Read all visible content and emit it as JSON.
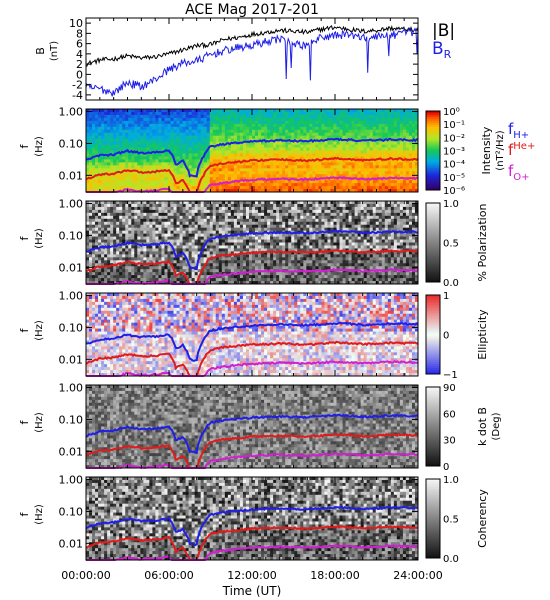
{
  "title": "ACE Mag 2017-201",
  "x_axis": {
    "label": "Time (UT)",
    "ticks": [
      "00:00:00",
      "06:00:00",
      "12:00:00",
      "18:00:00",
      "24:00:00"
    ],
    "range_hours": [
      0,
      24
    ]
  },
  "legend_top": [
    {
      "label": "|B|",
      "color": "#000000"
    },
    {
      "label": "B",
      "sub": "R",
      "color": "#1f1fe6"
    }
  ],
  "legend_cyclotron": [
    {
      "label": "f",
      "sub": "H+",
      "color": "#1f1fe6"
    },
    {
      "label": "f",
      "sup": "He+",
      "color": "#e01b1b"
    },
    {
      "label": "f",
      "sub": "O+",
      "color": "#d020d0"
    }
  ],
  "colors": {
    "btotal": "#000000",
    "br": "#1f1fe6",
    "f_h": "#1f1fe6",
    "f_he": "#e01b1b",
    "f_o": "#d020d0"
  },
  "chart_data": [
    {
      "type": "line",
      "name": "magnetic_field",
      "ylabel": "B",
      "yunit": "(nT)",
      "ylim": [
        -5,
        11
      ],
      "yticks": [
        "-4",
        "-2",
        "0",
        "2",
        "4",
        "6",
        "8",
        "10"
      ],
      "x_hours": [
        0,
        1,
        2,
        3,
        4,
        5,
        6,
        7,
        8,
        9,
        10,
        11,
        12,
        13,
        14,
        15,
        16,
        17,
        18,
        19,
        20,
        21,
        22,
        23,
        24
      ],
      "series": [
        {
          "name": "|B|",
          "values": [
            2.0,
            2.8,
            3.0,
            3.6,
            3.2,
            3.4,
            4.0,
            4.8,
            5.6,
            5.8,
            6.8,
            7.2,
            7.8,
            8.2,
            8.6,
            8.4,
            8.2,
            8.8,
            9.2,
            8.8,
            8.4,
            8.6,
            9.0,
            8.8,
            8.6
          ]
        },
        {
          "name": "B_R",
          "values": [
            -2.6,
            -2.8,
            -3.6,
            -1.6,
            -2.4,
            -1.0,
            1.0,
            2.2,
            2.6,
            3.8,
            4.6,
            5.2,
            5.6,
            6.4,
            7.0,
            5.8,
            5.6,
            7.2,
            7.6,
            7.8,
            7.0,
            7.4,
            7.6,
            8.0,
            8.4
          ]
        }
      ]
    },
    {
      "type": "heatmap",
      "name": "power_spectral_density",
      "ylabel": "f",
      "yunit": "(Hz)",
      "ylog": true,
      "ylim": [
        0.003,
        1.2
      ],
      "yticks": [
        "1.00",
        "0.10",
        "0.01"
      ],
      "colorbar": {
        "label": "Intensity",
        "unit": "(nT²/Hz)",
        "ticks": [
          "10⁰",
          "10⁻¹",
          "10⁻²",
          "10⁻³",
          "10⁻⁴",
          "10⁻⁵",
          "10⁻⁶"
        ],
        "log": true,
        "range": [
          -6,
          0
        ],
        "colormap": "rainbow"
      }
    },
    {
      "type": "heatmap",
      "name": "percent_polarization",
      "ylabel": "f",
      "yunit": "(Hz)",
      "ylog": true,
      "ylim": [
        0.003,
        1.2
      ],
      "yticks": [
        "1.00",
        "0.10",
        "0.01"
      ],
      "colorbar": {
        "label": "% Polarization",
        "unit": "",
        "ticks": [
          "1.0",
          "0.5",
          "0.0"
        ],
        "range": [
          0,
          1
        ],
        "colormap": "gray"
      }
    },
    {
      "type": "heatmap",
      "name": "ellipticity",
      "ylabel": "f",
      "yunit": "(Hz)",
      "ylog": true,
      "ylim": [
        0.003,
        1.2
      ],
      "yticks": [
        "1.00",
        "0.10",
        "0.01"
      ],
      "colorbar": {
        "label": "Ellipticity",
        "unit": "",
        "ticks": [
          "1",
          "0",
          "−1"
        ],
        "range": [
          -1,
          1
        ],
        "colormap": "bwr"
      }
    },
    {
      "type": "heatmap",
      "name": "wave_normal_angle",
      "ylabel": "f",
      "yunit": "(Hz)",
      "ylog": true,
      "ylim": [
        0.003,
        1.2
      ],
      "yticks": [
        "1.00",
        "0.10",
        "0.01"
      ],
      "colorbar": {
        "label": "k dot B",
        "unit": "(Deg)",
        "ticks": [
          "90",
          "60",
          "30",
          "0"
        ],
        "range": [
          0,
          90
        ],
        "colormap": "gray"
      }
    },
    {
      "type": "heatmap",
      "name": "coherency",
      "ylabel": "f",
      "yunit": "(Hz)",
      "ylog": true,
      "ylim": [
        0.003,
        1.2
      ],
      "yticks": [
        "1.00",
        "0.10",
        "0.01"
      ],
      "colorbar": {
        "label": "Coherency",
        "unit": "",
        "ticks": [
          "1.0",
          "0.5",
          "0.0"
        ],
        "range": [
          0,
          1
        ],
        "colormap": "gray"
      }
    }
  ],
  "cyclotron_lines": {
    "x_hours": [
      0,
      1,
      2,
      3,
      4,
      5,
      6,
      6.5,
      7,
      7.5,
      8,
      8.5,
      9,
      10,
      11,
      12,
      13,
      14,
      15,
      16,
      17,
      18,
      19,
      20,
      21,
      22,
      23,
      24
    ],
    "f_H+": [
      0.03,
      0.042,
      0.045,
      0.058,
      0.05,
      0.052,
      0.06,
      0.022,
      0.028,
      0.01,
      0.009,
      0.04,
      0.08,
      0.095,
      0.105,
      0.115,
      0.12,
      0.125,
      0.12,
      0.118,
      0.125,
      0.135,
      0.13,
      0.12,
      0.125,
      0.132,
      0.13,
      0.128
    ],
    "f_He+": [
      0.0075,
      0.0105,
      0.0113,
      0.0145,
      0.0125,
      0.013,
      0.015,
      0.0055,
      0.007,
      0.0028,
      0.0025,
      0.01,
      0.02,
      0.024,
      0.026,
      0.029,
      0.03,
      0.031,
      0.03,
      0.029,
      0.031,
      0.034,
      0.032,
      0.03,
      0.031,
      0.033,
      0.032,
      0.032
    ],
    "f_O+": [
      0.0019,
      0.0026,
      0.0028,
      0.0036,
      0.0031,
      0.0033,
      0.0038,
      0.0014,
      0.0018,
      0.0007,
      0.0006,
      0.0025,
      0.005,
      0.0059,
      0.0066,
      0.0072,
      0.0075,
      0.0078,
      0.0075,
      0.0074,
      0.0078,
      0.0084,
      0.0081,
      0.0075,
      0.0078,
      0.0083,
      0.0081,
      0.008
    ]
  }
}
